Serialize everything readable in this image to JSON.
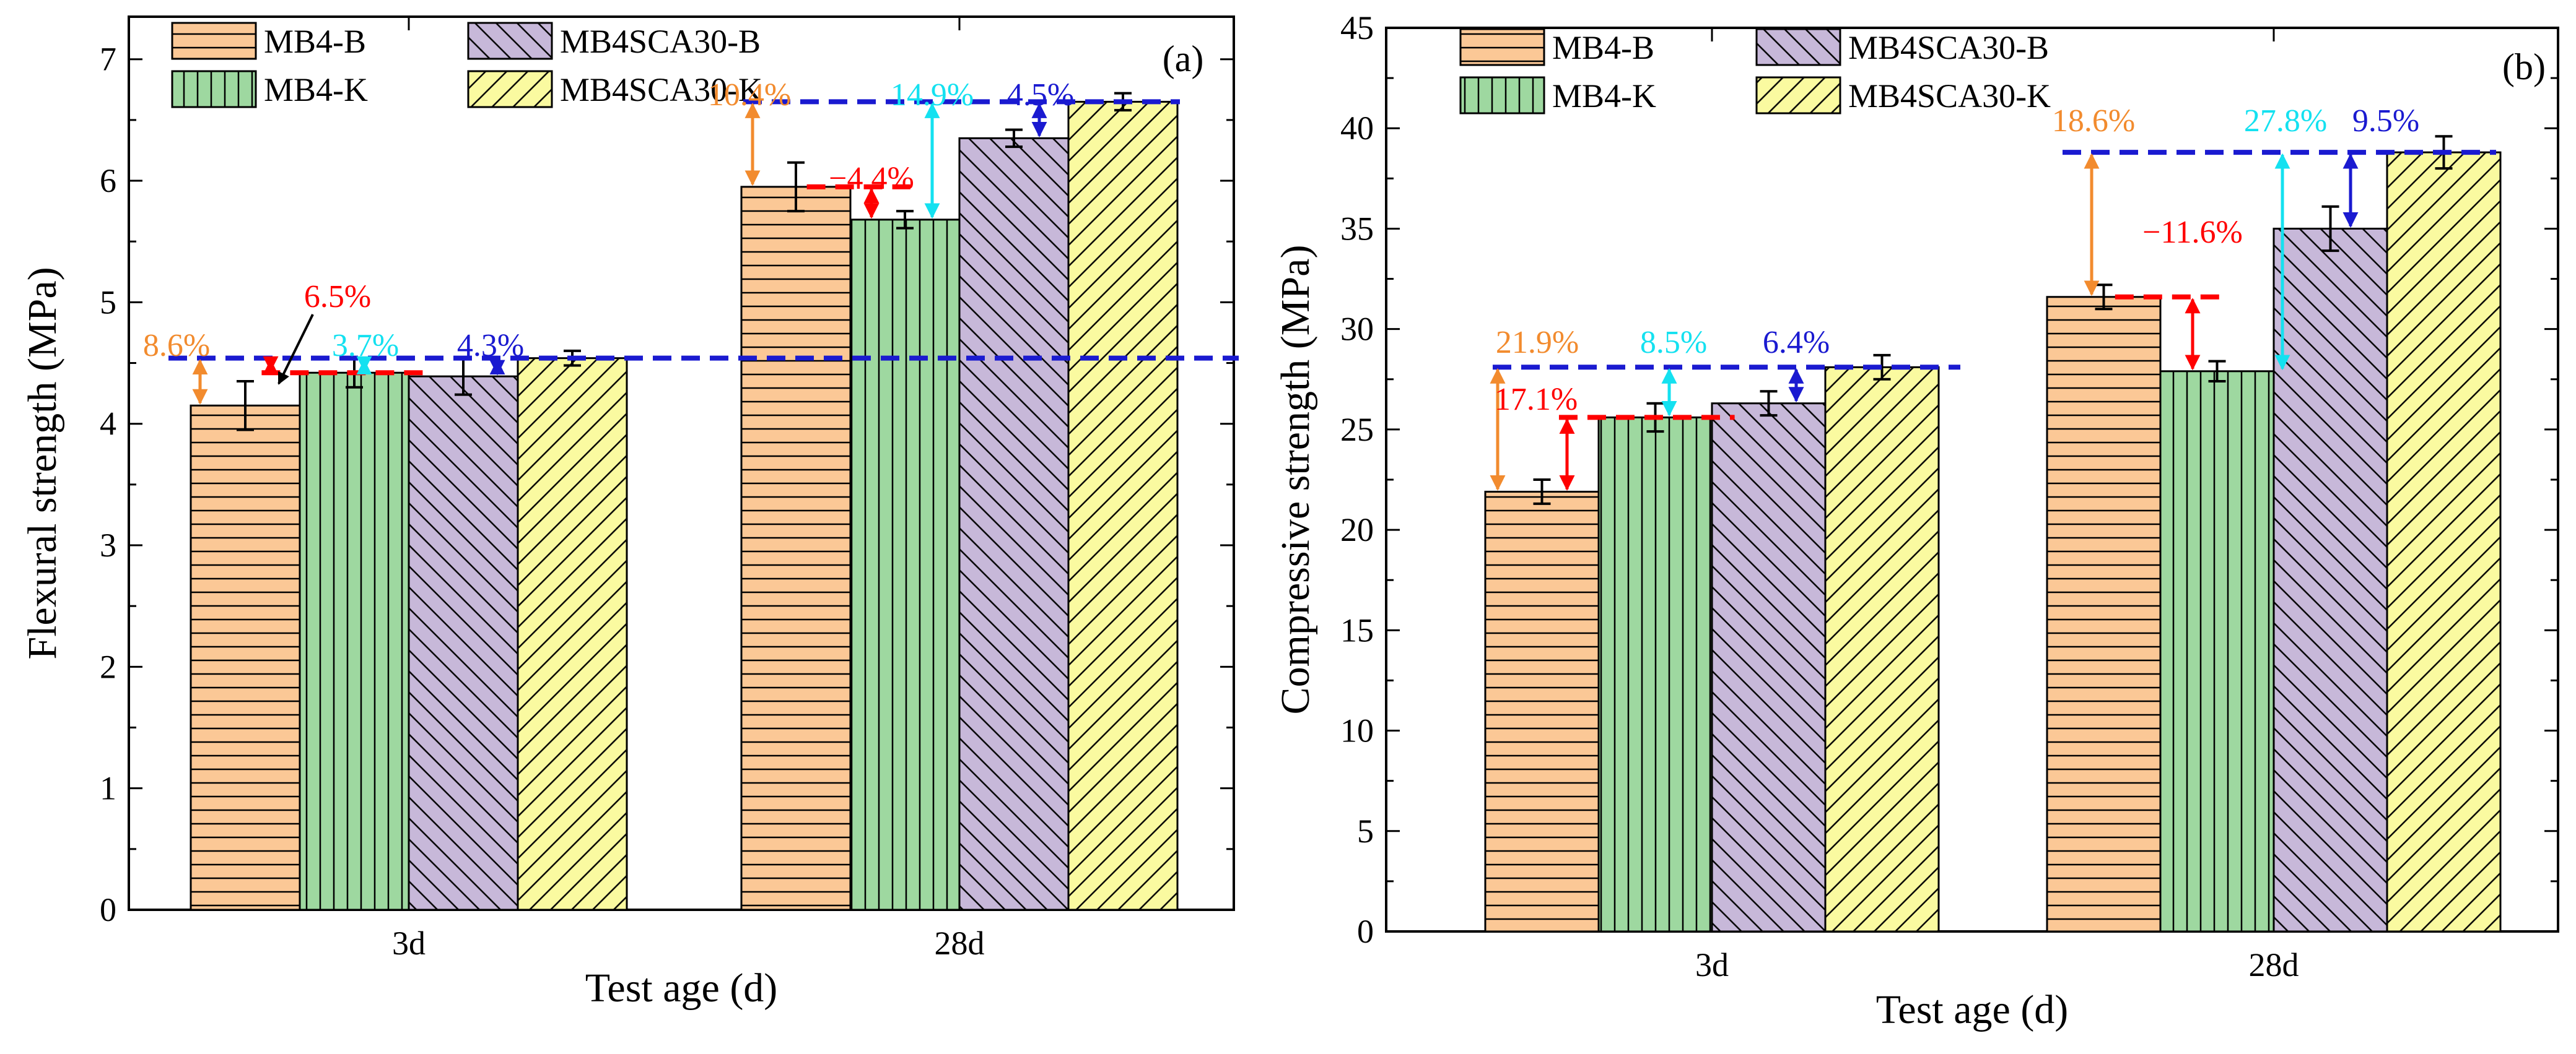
{
  "chart_data": [
    {
      "type": "bar",
      "panel_label": "(a)",
      "title": "",
      "xlabel": "Test age (d)",
      "ylabel": "Flexural strength (MPa)",
      "ylim": [
        0,
        7.35
      ],
      "yticks": [
        0,
        1,
        2,
        3,
        4,
        5,
        6,
        7
      ],
      "categories": [
        "3d",
        "28d"
      ],
      "legend_position": "top-left",
      "series": [
        {
          "name": "MB4-B",
          "values": [
            4.15,
            5.95
          ],
          "errors": [
            0.2,
            0.2
          ],
          "color": "#fbc896",
          "hatch": "horizontal"
        },
        {
          "name": "MB4-K",
          "values": [
            4.42,
            5.68
          ],
          "errors": [
            0.12,
            0.07
          ],
          "color": "#9ed8a0",
          "hatch": "vertical"
        },
        {
          "name": "MB4SCA30-B",
          "values": [
            4.39,
            6.35
          ],
          "errors": [
            0.15,
            0.07
          ],
          "color": "#c7b8d9",
          "hatch": "diagonal-right"
        },
        {
          "name": "MB4SCA30-K",
          "values": [
            4.54,
            6.65
          ],
          "errors": [
            0.06,
            0.07
          ],
          "color": "#fafaa0",
          "hatch": "diagonal-left"
        }
      ],
      "annotations": [
        {
          "text": "8.6%",
          "color": "#f28b2e"
        },
        {
          "text": "6.5%",
          "color": "#ff0000"
        },
        {
          "text": "3.7%",
          "color": "#14e1f0"
        },
        {
          "text": "4.3%",
          "color": "#1a1ad0"
        },
        {
          "text": "10.4%",
          "color": "#f28b2e"
        },
        {
          "text": "−4.4%",
          "color": "#ff0000"
        },
        {
          "text": "14.9%",
          "color": "#14e1f0"
        },
        {
          "text": "4.5%",
          "color": "#1a1ad0"
        }
      ]
    },
    {
      "type": "bar",
      "panel_label": "(b)",
      "title": "",
      "xlabel": "Test age (d)",
      "ylabel": "Compressive strength (MPa)",
      "ylim": [
        0,
        45
      ],
      "yticks": [
        0,
        5,
        10,
        15,
        20,
        25,
        30,
        35,
        40,
        45
      ],
      "categories": [
        "3d",
        "28d"
      ],
      "legend_position": "top-left",
      "series": [
        {
          "name": "MB4-B",
          "values": [
            21.9,
            31.6
          ],
          "errors": [
            0.6,
            0.6
          ],
          "color": "#fbc896",
          "hatch": "horizontal"
        },
        {
          "name": "MB4-K",
          "values": [
            25.6,
            27.9
          ],
          "errors": [
            0.7,
            0.5
          ],
          "color": "#9ed8a0",
          "hatch": "vertical"
        },
        {
          "name": "MB4SCA30-B",
          "values": [
            26.3,
            35.0
          ],
          "errors": [
            0.6,
            1.1
          ],
          "color": "#c7b8d9",
          "hatch": "diagonal-right"
        },
        {
          "name": "MB4SCA30-K",
          "values": [
            28.1,
            38.8
          ],
          "errors": [
            0.6,
            0.8
          ],
          "color": "#fafaa0",
          "hatch": "diagonal-left"
        }
      ],
      "annotations": [
        {
          "text": "21.9%",
          "color": "#f28b2e"
        },
        {
          "text": "17.1%",
          "color": "#ff0000"
        },
        {
          "text": "8.5%",
          "color": "#14e1f0"
        },
        {
          "text": "6.4%",
          "color": "#1a1ad0"
        },
        {
          "text": "18.6%",
          "color": "#f28b2e"
        },
        {
          "text": "−11.6%",
          "color": "#ff0000"
        },
        {
          "text": "27.8%",
          "color": "#14e1f0"
        },
        {
          "text": "9.5%",
          "color": "#1a1ad0"
        }
      ]
    }
  ]
}
